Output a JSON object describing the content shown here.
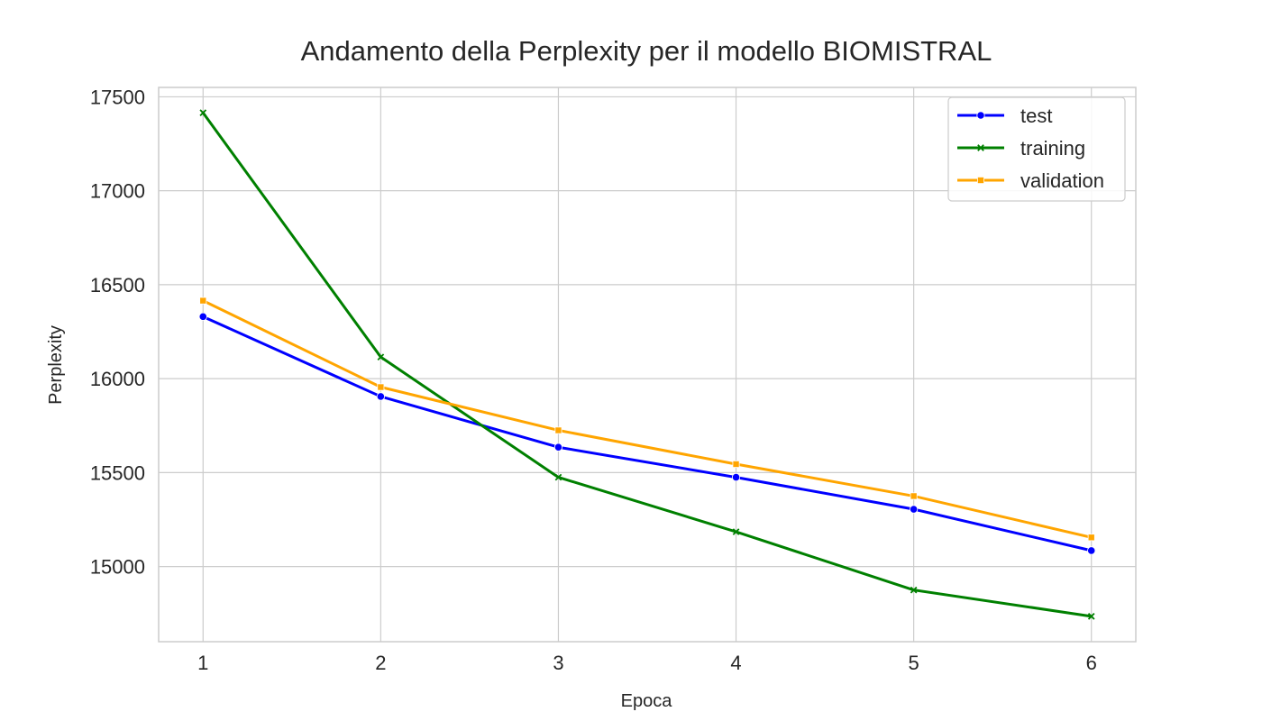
{
  "chart_data": {
    "type": "line",
    "title": "Andamento della Perplexity per il modello BIOMISTRAL",
    "xlabel": "Epoca",
    "ylabel": "Perplexity",
    "x": [
      1,
      2,
      3,
      4,
      5,
      6
    ],
    "xlim": [
      0.75,
      6.25
    ],
    "ylim": [
      14600,
      17550
    ],
    "yticks": [
      15000,
      15500,
      16000,
      16500,
      17000,
      17500
    ],
    "grid": true,
    "legend_position": "top-right",
    "series": [
      {
        "name": "test",
        "color": "#0000ff",
        "marker": "circle",
        "values": [
          16330,
          15905,
          15635,
          15475,
          15305,
          15085
        ]
      },
      {
        "name": "training",
        "color": "#008000",
        "marker": "x",
        "values": [
          17415,
          16115,
          15475,
          15185,
          14875,
          14735
        ]
      },
      {
        "name": "validation",
        "color": "#ffa500",
        "marker": "square",
        "values": [
          16415,
          15955,
          15725,
          15545,
          15375,
          15155
        ]
      }
    ]
  }
}
